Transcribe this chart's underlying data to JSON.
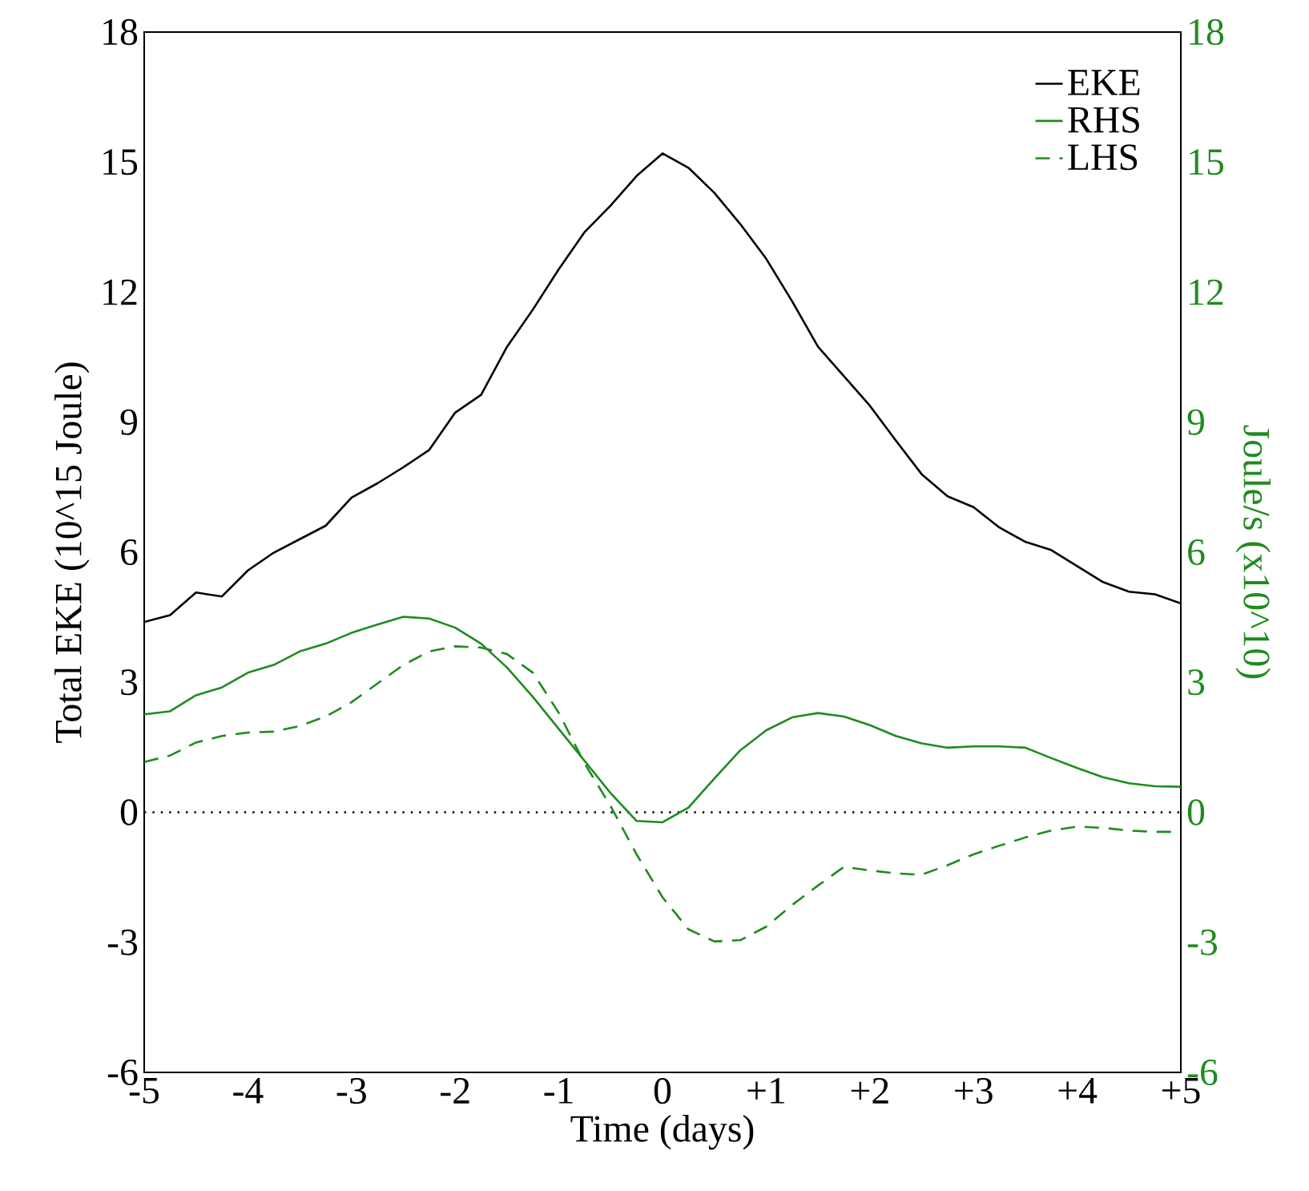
{
  "chart_data": {
    "type": "line",
    "xlabel": "Time (days)",
    "ylabel": "Total EKE (10^15 Joule)",
    "y2label": "Joule/s (x10^10)",
    "x": [
      -5,
      -4.75,
      -4.5,
      -4.25,
      -4,
      -3.75,
      -3.5,
      -3.25,
      -3,
      -2.75,
      -2.5,
      -2.25,
      -2,
      -1.75,
      -1.5,
      -1.25,
      -1,
      -0.75,
      -0.5,
      -0.25,
      0,
      0.25,
      0.5,
      0.75,
      1,
      1.25,
      1.5,
      1.75,
      2,
      2.25,
      2.5,
      2.75,
      3,
      3.25,
      3.5,
      3.75,
      4,
      4.25,
      4.5,
      4.75,
      5
    ],
    "series": [
      {
        "name": "EKE",
        "color": "#000000",
        "line_style": "solid",
        "values": [
          4.39,
          4.55,
          5.07,
          4.98,
          5.58,
          5.99,
          6.3,
          6.61,
          7.26,
          7.59,
          7.96,
          8.36,
          9.22,
          9.63,
          10.74,
          11.6,
          12.53,
          13.39,
          14.0,
          14.68,
          15.2,
          14.87,
          14.29,
          13.57,
          12.77,
          11.79,
          10.74,
          10.06,
          9.38,
          8.58,
          7.8,
          7.29,
          7.04,
          6.57,
          6.24,
          6.05,
          5.68,
          5.31,
          5.09,
          5.03,
          4.82
        ]
      },
      {
        "name": "RHS",
        "color": "#1e8c1e",
        "line_style": "solid",
        "axis": "y2",
        "values": [
          2.26,
          2.33,
          2.7,
          2.88,
          3.22,
          3.4,
          3.71,
          3.89,
          4.14,
          4.33,
          4.51,
          4.47,
          4.26,
          3.89,
          3.34,
          2.66,
          1.92,
          1.18,
          0.44,
          -0.2,
          -0.23,
          0.11,
          0.78,
          1.43,
          1.89,
          2.19,
          2.29,
          2.21,
          2.01,
          1.76,
          1.59,
          1.49,
          1.52,
          1.52,
          1.49,
          1.25,
          1.02,
          0.81,
          0.67,
          0.6,
          0.59
        ]
      },
      {
        "name": "LHS",
        "color": "#1e8c1e",
        "line_style": "dashed",
        "axis": "y2",
        "values": [
          1.16,
          1.31,
          1.61,
          1.76,
          1.84,
          1.86,
          1.99,
          2.21,
          2.54,
          2.97,
          3.4,
          3.71,
          3.83,
          3.8,
          3.65,
          3.22,
          2.29,
          1.12,
          0.14,
          -0.97,
          -1.96,
          -2.7,
          -2.98,
          -2.95,
          -2.64,
          -2.14,
          -1.69,
          -1.26,
          -1.34,
          -1.41,
          -1.44,
          -1.22,
          -0.97,
          -0.77,
          -0.58,
          -0.42,
          -0.33,
          -0.36,
          -0.42,
          -0.45,
          -0.45
        ]
      }
    ],
    "xlim": [
      -5,
      5
    ],
    "ylim": [
      -6,
      18
    ],
    "y2lim": [
      -6,
      18
    ],
    "xticks": [
      -5,
      -4,
      -3,
      -2,
      -1,
      0,
      {
        "value": 1,
        "label": "+1"
      },
      {
        "value": 2,
        "label": "+2"
      },
      {
        "value": 3,
        "label": "+3"
      },
      {
        "value": 4,
        "label": "+4"
      },
      {
        "value": 5,
        "label": "+5"
      }
    ],
    "yticks": [
      -6,
      -3,
      0,
      3,
      6,
      9,
      12,
      15,
      18
    ],
    "y2ticks": [
      -6,
      -3,
      0,
      3,
      6,
      9,
      12,
      15,
      18
    ],
    "legend": "top right",
    "ref_lines": [
      {
        "axis": "y",
        "value": 0,
        "color": "#000000",
        "line_style": "dotted"
      }
    ]
  }
}
